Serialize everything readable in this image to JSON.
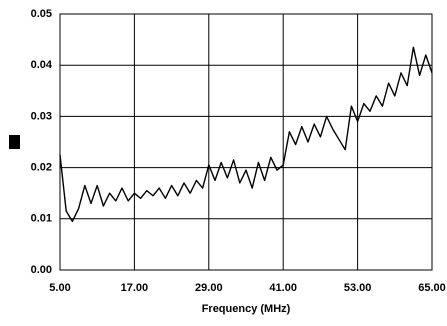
{
  "chart_data": {
    "type": "line",
    "xlabel": "Frequency (MHz)",
    "x": [
      5,
      6,
      7,
      8,
      9,
      10,
      11,
      12,
      13,
      14,
      15,
      16,
      17,
      18,
      19,
      20,
      21,
      22,
      23,
      24,
      25,
      26,
      27,
      28,
      29,
      30,
      31,
      32,
      33,
      34,
      35,
      36,
      37,
      38,
      39,
      40,
      41,
      42,
      43,
      44,
      45,
      46,
      47,
      48,
      49,
      50,
      51,
      52,
      53,
      54,
      55,
      56,
      57,
      58,
      59,
      60,
      61,
      62,
      63,
      64,
      65
    ],
    "series": [
      {
        "color": "#000000",
        "values": [
          0.0225,
          0.0115,
          0.0095,
          0.012,
          0.0165,
          0.013,
          0.0165,
          0.0125,
          0.015,
          0.0135,
          0.016,
          0.0135,
          0.015,
          0.014,
          0.0155,
          0.0145,
          0.016,
          0.014,
          0.0165,
          0.0145,
          0.017,
          0.015,
          0.0175,
          0.016,
          0.0205,
          0.0175,
          0.021,
          0.018,
          0.0215,
          0.017,
          0.0195,
          0.016,
          0.021,
          0.0175,
          0.022,
          0.0195,
          0.0205,
          0.027,
          0.0245,
          0.028,
          0.025,
          0.0285,
          0.026,
          0.03,
          0.0275,
          0.0255,
          0.0235,
          0.032,
          0.029,
          0.0325,
          0.031,
          0.034,
          0.032,
          0.0365,
          0.034,
          0.0385,
          0.036,
          0.0435,
          0.038,
          0.042,
          0.0385
        ]
      }
    ],
    "xlim": [
      5,
      65
    ],
    "xticks": [
      {
        "value": 5,
        "label": "5.00"
      },
      {
        "value": 17,
        "label": "17.00"
      },
      {
        "value": 29,
        "label": "29.00"
      },
      {
        "value": 41,
        "label": "41.00"
      },
      {
        "value": 53,
        "label": "53.00"
      },
      {
        "value": 65,
        "label": "65.00"
      }
    ],
    "ylim": [
      0,
      0.05
    ],
    "yticks": [
      {
        "value": 0,
        "label": "0.00"
      },
      0.01,
      0.02,
      0.03,
      0.04,
      0.05
    ],
    "grid": true
  }
}
